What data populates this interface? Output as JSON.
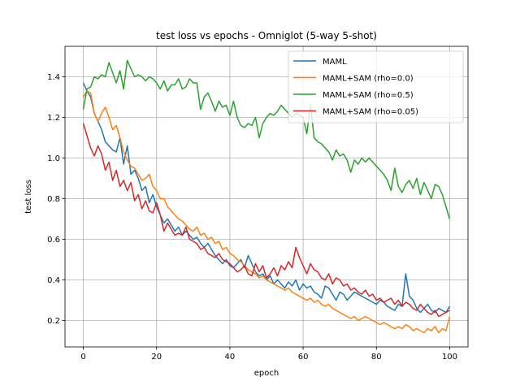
{
  "chart_data": {
    "type": "line",
    "title": "test loss vs epochs - Omniglot (5-way 5-shot)",
    "xlabel": "epoch",
    "ylabel": "test loss",
    "xlim": [
      -5,
      105
    ],
    "ylim": [
      0.07,
      1.55
    ],
    "xticks": [
      0,
      20,
      40,
      60,
      80,
      100
    ],
    "yticks": [
      0.2,
      0.4,
      0.6,
      0.8,
      1.0,
      1.2,
      1.4
    ],
    "ytick_labels": [
      "0.2",
      "0.4",
      "0.6",
      "0.8",
      "1.0",
      "1.2",
      "1.4"
    ],
    "grid": true,
    "legend_position": "top-right",
    "series": [
      {
        "name": "MAML",
        "color": "#1f77b4",
        "values": [
          1.37,
          1.33,
          1.3,
          1.22,
          1.18,
          1.14,
          1.08,
          1.06,
          1.04,
          1.03,
          1.1,
          0.97,
          1.06,
          0.92,
          0.94,
          0.9,
          0.84,
          0.86,
          0.78,
          0.82,
          0.76,
          0.72,
          0.68,
          0.7,
          0.67,
          0.64,
          0.66,
          0.62,
          0.64,
          0.62,
          0.6,
          0.61,
          0.58,
          0.56,
          0.58,
          0.55,
          0.52,
          0.5,
          0.48,
          0.5,
          0.47,
          0.46,
          0.48,
          0.5,
          0.46,
          0.52,
          0.48,
          0.44,
          0.42,
          0.43,
          0.4,
          0.42,
          0.38,
          0.4,
          0.38,
          0.36,
          0.39,
          0.37,
          0.4,
          0.35,
          0.38,
          0.36,
          0.37,
          0.34,
          0.33,
          0.31,
          0.37,
          0.36,
          0.33,
          0.3,
          0.34,
          0.33,
          0.3,
          0.32,
          0.34,
          0.33,
          0.32,
          0.31,
          0.3,
          0.29,
          0.28,
          0.3,
          0.29,
          0.27,
          0.26,
          0.25,
          0.28,
          0.27,
          0.43,
          0.32,
          0.3,
          0.26,
          0.24,
          0.26,
          0.28,
          0.25,
          0.24,
          0.26,
          0.25,
          0.24,
          0.27
        ]
      },
      {
        "name": "MAML+SAM (rho=0.0)",
        "color": "#ff7f0e",
        "values": [
          1.3,
          1.33,
          1.32,
          1.22,
          1.18,
          1.22,
          1.25,
          1.2,
          1.14,
          1.16,
          1.1,
          1.03,
          0.99,
          0.96,
          0.95,
          0.92,
          0.89,
          0.9,
          0.92,
          0.86,
          0.84,
          0.8,
          0.8,
          0.76,
          0.74,
          0.72,
          0.7,
          0.69,
          0.67,
          0.65,
          0.64,
          0.66,
          0.62,
          0.63,
          0.6,
          0.61,
          0.58,
          0.59,
          0.55,
          0.56,
          0.53,
          0.52,
          0.5,
          0.49,
          0.47,
          0.45,
          0.44,
          0.43,
          0.41,
          0.42,
          0.4,
          0.39,
          0.38,
          0.37,
          0.36,
          0.35,
          0.36,
          0.34,
          0.33,
          0.32,
          0.31,
          0.3,
          0.31,
          0.29,
          0.3,
          0.28,
          0.27,
          0.28,
          0.26,
          0.25,
          0.24,
          0.23,
          0.22,
          0.21,
          0.22,
          0.2,
          0.21,
          0.22,
          0.21,
          0.2,
          0.19,
          0.18,
          0.19,
          0.18,
          0.17,
          0.16,
          0.17,
          0.16,
          0.18,
          0.17,
          0.15,
          0.16,
          0.15,
          0.14,
          0.16,
          0.15,
          0.17,
          0.14,
          0.16,
          0.15,
          0.22
        ]
      },
      {
        "name": "MAML+SAM (rho=0.5)",
        "color": "#2ca02c",
        "values": [
          1.24,
          1.34,
          1.35,
          1.4,
          1.39,
          1.41,
          1.4,
          1.47,
          1.42,
          1.37,
          1.43,
          1.34,
          1.48,
          1.44,
          1.4,
          1.41,
          1.4,
          1.38,
          1.4,
          1.39,
          1.37,
          1.34,
          1.38,
          1.33,
          1.36,
          1.36,
          1.39,
          1.34,
          1.35,
          1.39,
          1.37,
          1.37,
          1.24,
          1.3,
          1.32,
          1.28,
          1.23,
          1.28,
          1.25,
          1.26,
          1.21,
          1.28,
          1.2,
          1.16,
          1.15,
          1.17,
          1.16,
          1.2,
          1.1,
          1.17,
          1.2,
          1.22,
          1.21,
          1.23,
          1.26,
          1.24,
          1.22,
          1.2,
          1.22,
          1.21,
          1.2,
          1.12,
          1.26,
          1.1,
          1.08,
          1.07,
          1.05,
          1.03,
          0.99,
          1.04,
          1.01,
          1.02,
          0.99,
          0.93,
          0.99,
          0.97,
          1.0,
          0.98,
          1.0,
          0.98,
          0.96,
          0.94,
          0.92,
          0.89,
          0.84,
          0.95,
          0.86,
          0.83,
          0.87,
          0.89,
          0.85,
          0.9,
          0.82,
          0.88,
          0.84,
          0.8,
          0.87,
          0.86,
          0.82,
          0.76,
          0.7
        ]
      },
      {
        "name": "MAML+SAM (rho=0.05)",
        "color": "#d62728",
        "values": [
          1.17,
          1.11,
          1.05,
          1.01,
          1.06,
          1.02,
          0.94,
          0.98,
          0.89,
          0.94,
          0.86,
          0.89,
          0.84,
          0.88,
          0.79,
          0.82,
          0.75,
          0.79,
          0.74,
          0.73,
          0.78,
          0.72,
          0.64,
          0.68,
          0.65,
          0.62,
          0.63,
          0.62,
          0.66,
          0.6,
          0.59,
          0.58,
          0.55,
          0.56,
          0.53,
          0.52,
          0.51,
          0.53,
          0.5,
          0.49,
          0.48,
          0.46,
          0.44,
          0.45,
          0.47,
          0.43,
          0.42,
          0.48,
          0.44,
          0.47,
          0.41,
          0.43,
          0.46,
          0.42,
          0.47,
          0.45,
          0.49,
          0.46,
          0.56,
          0.51,
          0.47,
          0.43,
          0.48,
          0.45,
          0.44,
          0.41,
          0.4,
          0.43,
          0.38,
          0.41,
          0.4,
          0.37,
          0.38,
          0.35,
          0.36,
          0.34,
          0.33,
          0.35,
          0.32,
          0.33,
          0.3,
          0.31,
          0.29,
          0.3,
          0.31,
          0.28,
          0.3,
          0.27,
          0.29,
          0.28,
          0.26,
          0.25,
          0.28,
          0.26,
          0.24,
          0.23,
          0.25,
          0.22,
          0.23,
          0.24,
          0.25
        ]
      }
    ]
  }
}
